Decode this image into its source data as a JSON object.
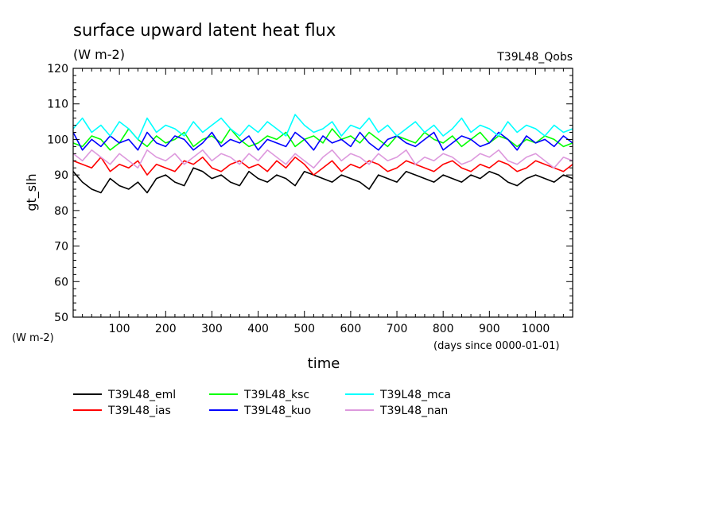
{
  "chart_data": {
    "type": "line",
    "title": "surface upward latent heat flux",
    "subtitle": "(W m-2)",
    "experiment_label": "T39L48_Qobs",
    "ylabel": "gt_slh",
    "yunit_label": "(W m-2)",
    "xlabel": "time",
    "xunit_label": "(days since 0000-01-01)",
    "xlim": [
      0,
      1080
    ],
    "ylim": [
      50,
      120
    ],
    "xticks": [
      100,
      200,
      300,
      400,
      500,
      600,
      700,
      800,
      900,
      1000
    ],
    "yticks": [
      50,
      60,
      70,
      80,
      90,
      100,
      110,
      120
    ],
    "grid": false,
    "legend_position": "bottom",
    "series": [
      {
        "name": "T39L48_eml",
        "color": "#000000",
        "x": [
          0,
          20,
          40,
          60,
          80,
          100,
          120,
          140,
          160,
          180,
          200,
          220,
          240,
          260,
          280,
          300,
          320,
          340,
          360,
          380,
          400,
          420,
          440,
          460,
          480,
          500,
          520,
          540,
          560,
          580,
          600,
          620,
          640,
          660,
          680,
          700,
          720,
          740,
          760,
          780,
          800,
          820,
          840,
          860,
          880,
          900,
          920,
          940,
          960,
          980,
          1000,
          1020,
          1040,
          1060,
          1080
        ],
        "y": [
          91,
          88,
          86,
          85,
          89,
          87,
          86,
          88,
          85,
          89,
          90,
          88,
          87,
          92,
          91,
          89,
          90,
          88,
          87,
          91,
          89,
          88,
          90,
          89,
          87,
          91,
          90,
          89,
          88,
          90,
          89,
          88,
          86,
          90,
          89,
          88,
          91,
          90,
          89,
          88,
          90,
          89,
          88,
          90,
          89,
          91,
          90,
          88,
          87,
          89,
          90,
          89,
          88,
          90,
          89
        ]
      },
      {
        "name": "T39L48_ias",
        "color": "#ff0000",
        "x": [
          0,
          20,
          40,
          60,
          80,
          100,
          120,
          140,
          160,
          180,
          200,
          220,
          240,
          260,
          280,
          300,
          320,
          340,
          360,
          380,
          400,
          420,
          440,
          460,
          480,
          500,
          520,
          540,
          560,
          580,
          600,
          620,
          640,
          660,
          680,
          700,
          720,
          740,
          760,
          780,
          800,
          820,
          840,
          860,
          880,
          900,
          920,
          940,
          960,
          980,
          1000,
          1020,
          1040,
          1060,
          1080
        ],
        "y": [
          94,
          93,
          92,
          95,
          91,
          93,
          92,
          94,
          90,
          93,
          92,
          91,
          94,
          93,
          95,
          92,
          91,
          93,
          94,
          92,
          93,
          91,
          94,
          92,
          95,
          93,
          90,
          92,
          94,
          91,
          93,
          92,
          94,
          93,
          91,
          92,
          94,
          93,
          92,
          91,
          93,
          94,
          92,
          91,
          93,
          92,
          94,
          93,
          91,
          92,
          94,
          93,
          92,
          91,
          93
        ]
      },
      {
        "name": "T39L48_ksc",
        "color": "#00ff00",
        "x": [
          0,
          20,
          40,
          60,
          80,
          100,
          120,
          140,
          160,
          180,
          200,
          220,
          240,
          260,
          280,
          300,
          320,
          340,
          360,
          380,
          400,
          420,
          440,
          460,
          480,
          500,
          520,
          540,
          560,
          580,
          600,
          620,
          640,
          660,
          680,
          700,
          720,
          740,
          760,
          780,
          800,
          820,
          840,
          860,
          880,
          900,
          920,
          940,
          960,
          980,
          1000,
          1020,
          1040,
          1060,
          1080
        ],
        "y": [
          99,
          98,
          101,
          100,
          97,
          99,
          103,
          100,
          98,
          101,
          99,
          100,
          102,
          98,
          100,
          101,
          99,
          103,
          100,
          98,
          99,
          101,
          100,
          102,
          98,
          100,
          101,
          99,
          103,
          100,
          101,
          99,
          102,
          100,
          98,
          101,
          100,
          99,
          102,
          100,
          99,
          101,
          98,
          100,
          102,
          99,
          101,
          100,
          98,
          100,
          99,
          101,
          100,
          98,
          99
        ]
      },
      {
        "name": "T39L48_kuo",
        "color": "#0000ff",
        "x": [
          0,
          20,
          40,
          60,
          80,
          100,
          120,
          140,
          160,
          180,
          200,
          220,
          240,
          260,
          280,
          300,
          320,
          340,
          360,
          380,
          400,
          420,
          440,
          460,
          480,
          500,
          520,
          540,
          560,
          580,
          600,
          620,
          640,
          660,
          680,
          700,
          720,
          740,
          760,
          780,
          800,
          820,
          840,
          860,
          880,
          900,
          920,
          940,
          960,
          980,
          1000,
          1020,
          1040,
          1060,
          1080
        ],
        "y": [
          102,
          97,
          100,
          98,
          101,
          99,
          100,
          97,
          102,
          99,
          98,
          101,
          100,
          97,
          99,
          102,
          98,
          100,
          99,
          101,
          97,
          100,
          99,
          98,
          102,
          100,
          97,
          101,
          99,
          100,
          98,
          102,
          99,
          97,
          100,
          101,
          99,
          98,
          100,
          102,
          97,
          99,
          101,
          100,
          98,
          99,
          102,
          100,
          97,
          101,
          99,
          100,
          98,
          101,
          99
        ]
      },
      {
        "name": "T39L48_mca",
        "color": "#00ffff",
        "x": [
          0,
          20,
          40,
          60,
          80,
          100,
          120,
          140,
          160,
          180,
          200,
          220,
          240,
          260,
          280,
          300,
          320,
          340,
          360,
          380,
          400,
          420,
          440,
          460,
          480,
          500,
          520,
          540,
          560,
          580,
          600,
          620,
          640,
          660,
          680,
          700,
          720,
          740,
          760,
          780,
          800,
          820,
          840,
          860,
          880,
          900,
          920,
          940,
          960,
          980,
          1000,
          1020,
          1040,
          1060,
          1080
        ],
        "y": [
          103,
          106,
          102,
          104,
          101,
          105,
          103,
          100,
          106,
          102,
          104,
          103,
          101,
          105,
          102,
          104,
          106,
          103,
          101,
          104,
          102,
          105,
          103,
          101,
          107,
          104,
          102,
          103,
          105,
          101,
          104,
          103,
          106,
          102,
          104,
          101,
          103,
          105,
          102,
          104,
          101,
          103,
          106,
          102,
          104,
          103,
          101,
          105,
          102,
          104,
          103,
          101,
          104,
          102,
          103
        ]
      },
      {
        "name": "T39L48_nan",
        "color": "#dd99dd",
        "x": [
          0,
          20,
          40,
          60,
          80,
          100,
          120,
          140,
          160,
          180,
          200,
          220,
          240,
          260,
          280,
          300,
          320,
          340,
          360,
          380,
          400,
          420,
          440,
          460,
          480,
          500,
          520,
          540,
          560,
          580,
          600,
          620,
          640,
          660,
          680,
          700,
          720,
          740,
          760,
          780,
          800,
          820,
          840,
          860,
          880,
          900,
          920,
          940,
          960,
          980,
          1000,
          1020,
          1040,
          1060,
          1080
        ],
        "y": [
          96,
          94,
          97,
          95,
          93,
          96,
          94,
          92,
          97,
          95,
          94,
          96,
          93,
          95,
          97,
          94,
          96,
          95,
          93,
          96,
          94,
          97,
          95,
          93,
          96,
          94,
          92,
          95,
          97,
          94,
          96,
          95,
          93,
          96,
          94,
          95,
          97,
          93,
          95,
          94,
          96,
          95,
          93,
          94,
          96,
          95,
          97,
          94,
          93,
          95,
          96,
          94,
          92,
          95,
          94
        ]
      }
    ]
  }
}
